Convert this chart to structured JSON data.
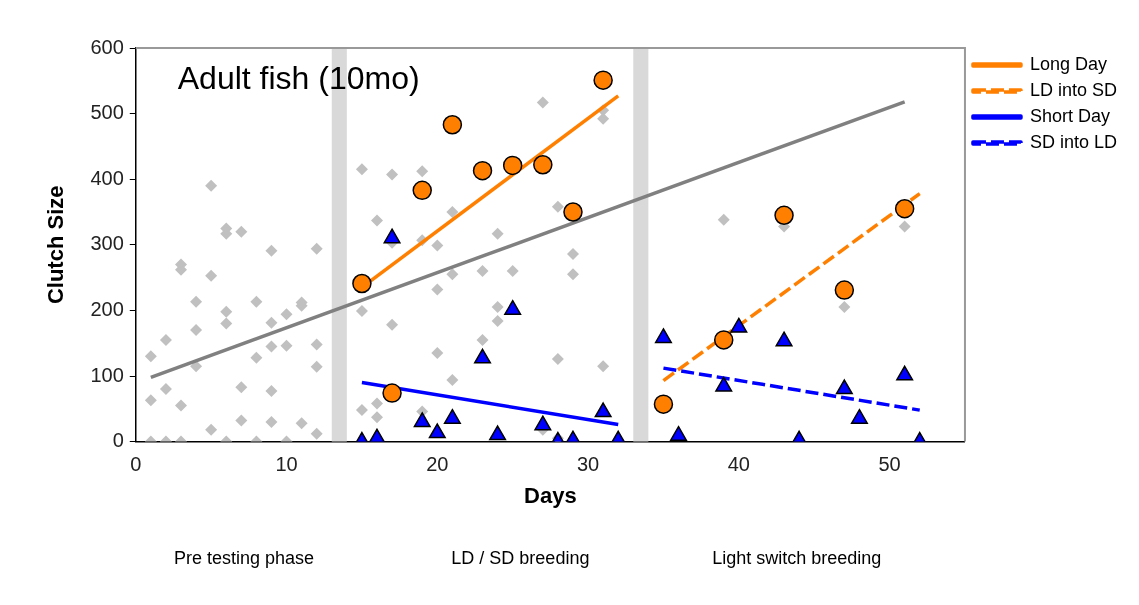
{
  "chart_data": {
    "type": "scatter",
    "title": "Adult fish (10mo)",
    "xlabel": "Days",
    "ylabel": "Clutch Size",
    "xlim": [
      0,
      55
    ],
    "xticks": [
      0,
      10,
      20,
      30,
      40,
      50
    ],
    "ylim": [
      0,
      600
    ],
    "yticks": [
      0,
      100,
      200,
      300,
      400,
      500,
      600
    ],
    "grid": false,
    "legend": "right",
    "bands": [
      {
        "axis": "x",
        "from": 13,
        "to": 14,
        "color": "#d9d9d9"
      },
      {
        "axis": "x",
        "from": 33,
        "to": 34,
        "color": "#d9d9d9"
      }
    ],
    "annotations": [
      "Pre testing phase",
      "LD / SD breeding",
      "Light switch breeding"
    ],
    "series": [
      {
        "type": "scatter",
        "marker": "diamond",
        "color": "#c0c0c0",
        "x": [
          1,
          1,
          1,
          2,
          2,
          2,
          3,
          3,
          3,
          3,
          4,
          4,
          4,
          5,
          5,
          5,
          6,
          6,
          6,
          6,
          6,
          7,
          7,
          7,
          8,
          8,
          8,
          9,
          9,
          9,
          9,
          9,
          10,
          10,
          10,
          11,
          11,
          11,
          12,
          12,
          12,
          12,
          15,
          15,
          15,
          16,
          16,
          16,
          17,
          17,
          17,
          19,
          19,
          19,
          20,
          20,
          20,
          21,
          21,
          21,
          23,
          23,
          24,
          24,
          24,
          25,
          27,
          27,
          28,
          28,
          28,
          29,
          29,
          31,
          31,
          31,
          39,
          43,
          47,
          51
        ],
        "values": [
          130,
          63,
          0,
          155,
          80,
          0,
          55,
          270,
          262,
          0,
          213,
          170,
          115,
          390,
          253,
          18,
          325,
          317,
          198,
          180,
          0,
          320,
          83,
          32,
          213,
          128,
          0,
          291,
          181,
          145,
          77,
          30,
          194,
          146,
          0,
          212,
          207,
          28,
          294,
          148,
          114,
          12,
          415,
          199,
          48,
          337,
          58,
          37,
          407,
          303,
          178,
          412,
          307,
          46,
          299,
          232,
          135,
          350,
          255,
          94,
          260,
          155,
          317,
          205,
          184,
          260,
          517,
          18,
          358,
          126,
          5,
          286,
          255,
          505,
          492,
          115,
          338,
          328,
          205,
          328
        ]
      },
      {
        "type": "line",
        "marker": "none",
        "line_style": "solid",
        "color": "#808080",
        "x": [
          1,
          51
        ],
        "values": [
          98,
          518
        ]
      },
      {
        "type": "line",
        "name": "Long Day",
        "marker": "none",
        "line_style": "solid",
        "color": "#ff8000",
        "x": [
          15,
          32
        ],
        "values": [
          235,
          527
        ]
      },
      {
        "type": "line",
        "name": "LD into SD",
        "marker": "none",
        "line_style": "dashed",
        "color": "#ff8000",
        "x": [
          35,
          52
        ],
        "values": [
          93,
          378
        ]
      },
      {
        "type": "line",
        "name": "Short Day",
        "marker": "none",
        "line_style": "solid",
        "color": "#0000ff",
        "x": [
          15,
          32
        ],
        "values": [
          90,
          26
        ]
      },
      {
        "type": "line",
        "name": "SD into LD",
        "marker": "none",
        "line_style": "dashed",
        "color": "#0000ff",
        "x": [
          35,
          52
        ],
        "values": [
          112,
          48
        ]
      },
      {
        "type": "scatter",
        "marker": "circle",
        "color": "#ff8000",
        "x": [
          15,
          17,
          19,
          21,
          23,
          25,
          27,
          29,
          31,
          35,
          39,
          43,
          47,
          51
        ],
        "values": [
          241,
          74,
          383,
          483,
          413,
          421,
          422,
          350,
          551,
          57,
          155,
          345,
          231,
          355
        ]
      },
      {
        "type": "scatter",
        "marker": "triangle",
        "color": "#0000ff",
        "x": [
          15,
          16,
          17,
          19,
          20,
          21,
          23,
          24,
          25,
          27,
          28,
          29,
          31,
          32,
          35,
          36,
          39,
          40,
          43,
          44,
          47,
          48,
          51,
          52
        ],
        "values": [
          0,
          5,
          310,
          30,
          13,
          35,
          127,
          10,
          201,
          25,
          0,
          2,
          45,
          2,
          158,
          9,
          84,
          174,
          153,
          2,
          80,
          35,
          101,
          0
        ]
      }
    ]
  }
}
